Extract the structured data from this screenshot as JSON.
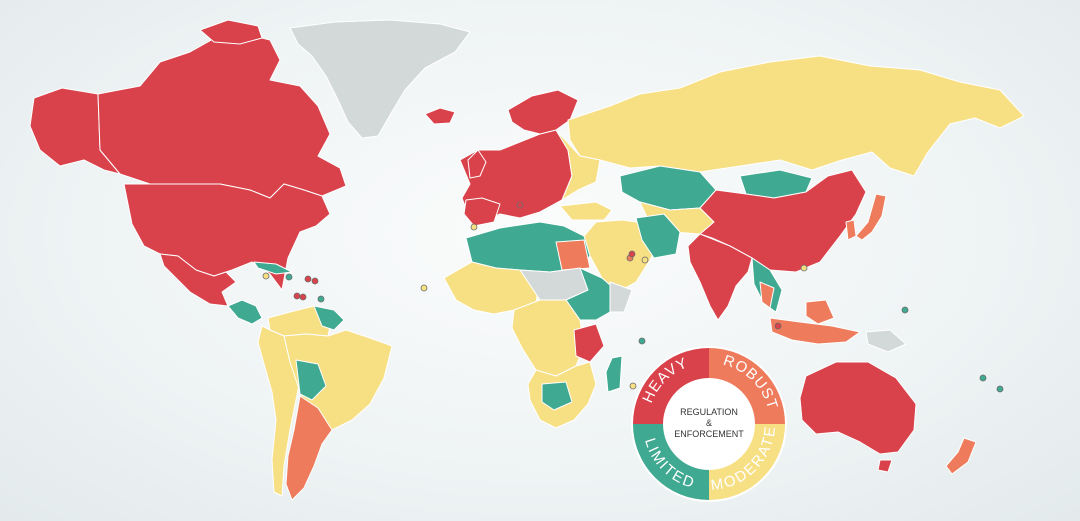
{
  "colors": {
    "heavy": "#d9424b",
    "robust": "#ee7b5b",
    "moderate": "#f7df84",
    "limited": "#3fa991",
    "no_data": "#d3d9d9"
  },
  "legend": {
    "heavy_label": "HEAVY",
    "robust_label": "ROBUST",
    "moderate_label": "MODERATE",
    "limited_label": "LIMITED",
    "center_line1": "REGULATION",
    "center_line2": "&",
    "center_line3": "ENFORCEMENT"
  },
  "map_data": {
    "type": "choropleth",
    "categories": [
      "Heavy",
      "Robust",
      "Moderate",
      "Limited"
    ],
    "regions": [
      {
        "name": "Canada",
        "level": "heavy"
      },
      {
        "name": "Alaska",
        "level": "heavy"
      },
      {
        "name": "United States",
        "level": "heavy"
      },
      {
        "name": "Mexico",
        "level": "heavy"
      },
      {
        "name": "Greenland",
        "level": "no_data"
      },
      {
        "name": "Iceland",
        "level": "heavy"
      },
      {
        "name": "Europe",
        "level": "heavy"
      },
      {
        "name": "Russia",
        "level": "moderate"
      },
      {
        "name": "Kazakhstan",
        "level": "limited"
      },
      {
        "name": "Mongolia",
        "level": "limited"
      },
      {
        "name": "China",
        "level": "heavy"
      },
      {
        "name": "India",
        "level": "heavy"
      },
      {
        "name": "Japan",
        "level": "robust"
      },
      {
        "name": "Australia",
        "level": "heavy"
      },
      {
        "name": "New Zealand",
        "level": "robust"
      },
      {
        "name": "Indonesia",
        "level": "robust"
      },
      {
        "name": "Papua New Guinea",
        "level": "no_data"
      },
      {
        "name": "Brazil",
        "level": "moderate"
      },
      {
        "name": "Argentina",
        "level": "robust"
      },
      {
        "name": "Chile",
        "level": "moderate"
      },
      {
        "name": "Venezuela",
        "level": "moderate"
      },
      {
        "name": "Egypt",
        "level": "robust"
      },
      {
        "name": "Saudi Arabia",
        "level": "moderate"
      },
      {
        "name": "Tanzania",
        "level": "heavy"
      },
      {
        "name": "South Africa",
        "level": "moderate"
      },
      {
        "name": "Madagascar",
        "level": "limited"
      }
    ]
  }
}
